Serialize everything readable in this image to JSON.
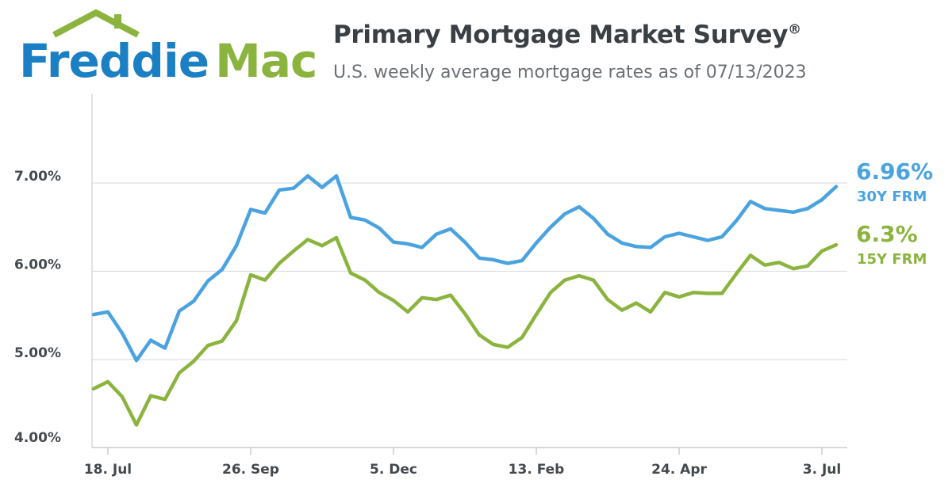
{
  "brand": {
    "logo_part1": "Freddie",
    "logo_part2": "Mac",
    "blue": "#1b7fc4",
    "green": "#8bb43e"
  },
  "header": {
    "title": "Primary Mortgage Market Survey",
    "title_mark": "®",
    "subtitle": "U.S. weekly average mortgage rates as of 07/13/2023"
  },
  "chart_data": {
    "type": "line",
    "title": "Primary Mortgage Market Survey®",
    "subtitle": "U.S. weekly average mortgage rates as of 07/13/2023",
    "xlabel": "",
    "ylabel": "",
    "ylim": [
      4.0,
      7.0
    ],
    "yticks": [
      {
        "value": 7.0,
        "label": "7.00%"
      },
      {
        "value": 6.0,
        "label": "6.00%"
      },
      {
        "value": 5.0,
        "label": "5.00%"
      },
      {
        "value": 4.0,
        "label": "4.00%"
      }
    ],
    "xticks": [
      {
        "index": 1,
        "label": "18. Jul"
      },
      {
        "index": 11,
        "label": "26. Sep"
      },
      {
        "index": 21,
        "label": "5. Dec"
      },
      {
        "index": 31,
        "label": "13. Feb"
      },
      {
        "index": 41,
        "label": "24. Apr"
      },
      {
        "index": 51,
        "label": "3. Jul"
      }
    ],
    "grid": true,
    "legend": "right, at line ends",
    "x": [
      "2022-07-14",
      "2022-07-21",
      "2022-07-28",
      "2022-08-04",
      "2022-08-11",
      "2022-08-18",
      "2022-08-25",
      "2022-09-01",
      "2022-09-08",
      "2022-09-15",
      "2022-09-22",
      "2022-09-29",
      "2022-10-06",
      "2022-10-13",
      "2022-10-20",
      "2022-10-27",
      "2022-11-03",
      "2022-11-10",
      "2022-11-17",
      "2022-11-23",
      "2022-12-01",
      "2022-12-08",
      "2022-12-15",
      "2022-12-22",
      "2022-12-29",
      "2023-01-05",
      "2023-01-12",
      "2023-01-19",
      "2023-01-26",
      "2023-02-02",
      "2023-02-09",
      "2023-02-16",
      "2023-02-23",
      "2023-03-02",
      "2023-03-09",
      "2023-03-16",
      "2023-03-23",
      "2023-03-30",
      "2023-04-06",
      "2023-04-13",
      "2023-04-20",
      "2023-04-27",
      "2023-05-04",
      "2023-05-11",
      "2023-05-18",
      "2023-05-25",
      "2023-06-01",
      "2023-06-08",
      "2023-06-15",
      "2023-06-22",
      "2023-06-29",
      "2023-07-06",
      "2023-07-13"
    ],
    "series": [
      {
        "name": "30Y FRM",
        "color": "#4aa3df",
        "end_label": "6.96%",
        "end_name": "30Y FRM",
        "values": [
          5.51,
          5.54,
          5.3,
          4.99,
          5.22,
          5.13,
          5.55,
          5.66,
          5.89,
          6.02,
          6.29,
          6.7,
          6.66,
          6.92,
          6.94,
          7.08,
          6.95,
          7.08,
          6.61,
          6.58,
          6.49,
          6.33,
          6.31,
          6.27,
          6.42,
          6.48,
          6.33,
          6.15,
          6.13,
          6.09,
          6.12,
          6.32,
          6.5,
          6.65,
          6.73,
          6.6,
          6.42,
          6.32,
          6.28,
          6.27,
          6.39,
          6.43,
          6.39,
          6.35,
          6.39,
          6.57,
          6.79,
          6.71,
          6.69,
          6.67,
          6.71,
          6.81,
          6.96
        ]
      },
      {
        "name": "15Y FRM",
        "color": "#8bb43e",
        "end_label": "6.3%",
        "end_name": "15Y FRM",
        "values": [
          4.67,
          4.75,
          4.58,
          4.26,
          4.59,
          4.55,
          4.85,
          4.98,
          5.16,
          5.21,
          5.44,
          5.96,
          5.9,
          6.09,
          6.23,
          6.36,
          6.29,
          6.38,
          5.98,
          5.9,
          5.76,
          5.67,
          5.54,
          5.7,
          5.68,
          5.73,
          5.52,
          5.28,
          5.17,
          5.14,
          5.25,
          5.51,
          5.76,
          5.9,
          5.95,
          5.9,
          5.68,
          5.56,
          5.64,
          5.54,
          5.76,
          5.71,
          5.76,
          5.75,
          5.75,
          5.97,
          6.18,
          6.07,
          6.1,
          6.03,
          6.06,
          6.23,
          6.3
        ]
      }
    ]
  }
}
